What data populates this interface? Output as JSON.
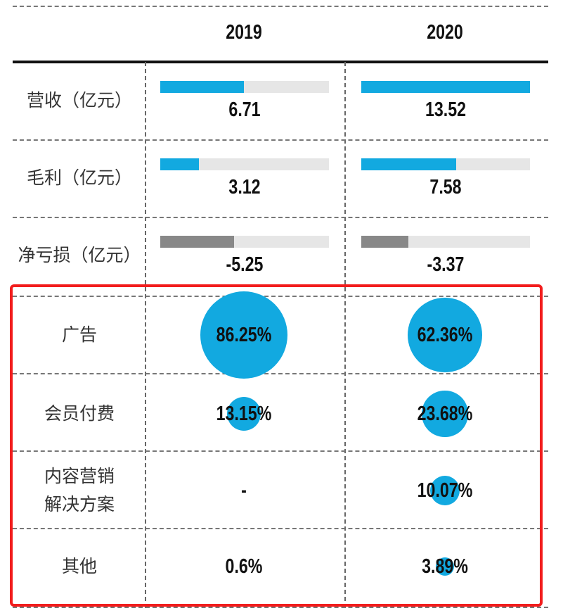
{
  "chart_data": {
    "type": "table",
    "columns": [
      "2019",
      "2020"
    ],
    "bar_rows": [
      {
        "label": "营收（亿元）",
        "values": [
          "6.71",
          "13.52"
        ],
        "numbers": [
          6.71,
          13.52
        ],
        "scale_max": 13.52,
        "color": "#12a9e0"
      },
      {
        "label": "毛利（亿元）",
        "values": [
          "3.12",
          "7.58"
        ],
        "numbers": [
          3.12,
          7.58
        ],
        "scale_max": 13.52,
        "color": "#12a9e0"
      },
      {
        "label": "净亏损（亿元）",
        "values": [
          "-5.25",
          "-3.37"
        ],
        "numbers": [
          5.25,
          3.37
        ],
        "scale_max": 12,
        "color": "#888888"
      }
    ],
    "bubble_rows": [
      {
        "label": "广告",
        "values": [
          "86.25%",
          "62.36%"
        ],
        "numbers": [
          86.25,
          62.36
        ]
      },
      {
        "label": "会员付费",
        "values": [
          "13.15%",
          "23.68%"
        ],
        "numbers": [
          13.15,
          23.68
        ]
      },
      {
        "label": "内容营销\n解决方案",
        "values": [
          "-",
          "10.07%"
        ],
        "numbers": [
          null,
          10.07
        ]
      },
      {
        "label": "其他",
        "values": [
          "0.6%",
          "3.89%"
        ],
        "numbers": [
          0.6,
          3.89
        ]
      }
    ],
    "bar_track_color": "#e6e6e6",
    "bubble_color": "#12a9e0",
    "highlight_box_color": "#f21d1d"
  }
}
